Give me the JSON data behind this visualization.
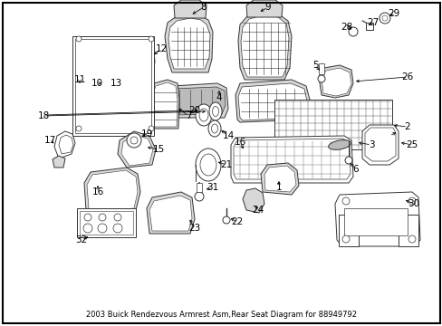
{
  "title": "2003 Buick Rendezvous Armrest Asm,Rear Seat Diagram for 88949792",
  "background_color": "#ffffff",
  "border_color": "#000000",
  "fig_width": 4.89,
  "fig_height": 3.6,
  "dpi": 100,
  "font_size_labels": 7.5,
  "font_size_title": 6.0,
  "gray_light": "#d8d8d8",
  "gray_mid": "#bbbbbb",
  "gray_dark": "#888888"
}
